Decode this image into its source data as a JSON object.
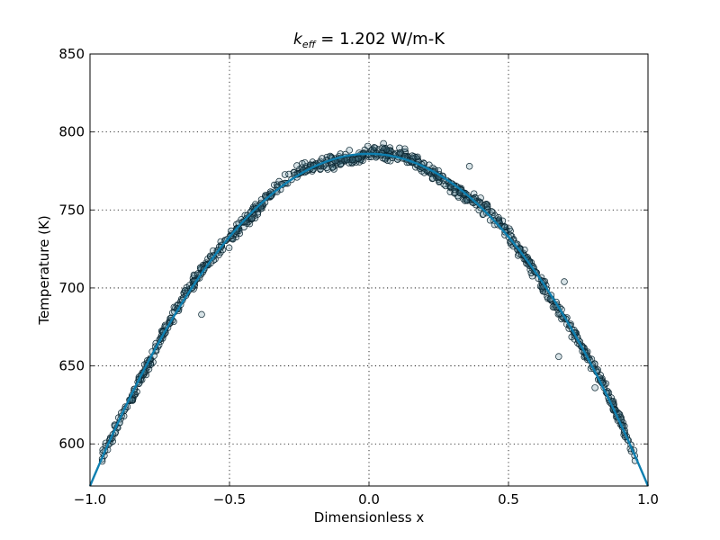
{
  "chart_data": {
    "type": "scatter",
    "title": {
      "main": "k",
      "subscript": "eff",
      "rest": " = 1.202 W/m-K"
    },
    "xlabel": "Dimensionless x",
    "ylabel": "Temperature (K)",
    "xlim": [
      -1.0,
      1.0
    ],
    "ylim": [
      573,
      850
    ],
    "x_ticks": [
      -1.0,
      -0.5,
      0.0,
      0.5,
      1.0
    ],
    "x_tick_labels": [
      "−1.0",
      "−0.5",
      "0.0",
      "0.5",
      "1.0"
    ],
    "y_ticks": [
      600,
      650,
      700,
      750,
      800,
      850
    ],
    "y_tick_labels": [
      "600",
      "650",
      "700",
      "750",
      "800",
      "850"
    ],
    "grid": true,
    "series": [
      {
        "kind": "scatter",
        "color": "#4d7f93",
        "edge_color": "#0b2530",
        "x_min": -0.96,
        "x_max": 0.96,
        "y_at_center": 786,
        "y_at_edge": 573,
        "scatter": 3
      },
      {
        "kind": "line",
        "color": "#0e7fb0",
        "x": [
          -1.0,
          -0.9,
          -0.8,
          -0.7,
          -0.6,
          -0.5,
          -0.4,
          -0.3,
          -0.2,
          -0.1,
          0.0,
          0.1,
          0.2,
          0.3,
          0.4,
          0.5,
          0.6,
          0.7,
          0.8,
          0.9,
          1.0
        ],
        "y": [
          573,
          613.5,
          649.7,
          681.5,
          708.7,
          732.0,
          750.5,
          765.0,
          776.6,
          783.9,
          786.0,
          783.9,
          776.6,
          765.0,
          750.5,
          732.0,
          708.7,
          681.5,
          649.7,
          613.5,
          573
        ]
      }
    ]
  }
}
